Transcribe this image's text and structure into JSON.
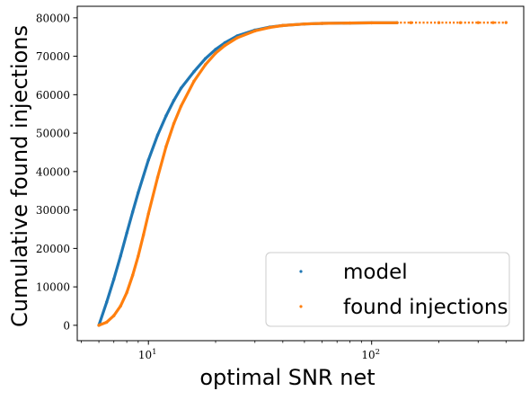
{
  "chart_data": {
    "type": "scatter",
    "title": "",
    "xlabel": "optimal SNR net",
    "ylabel": "Cumulative found injections",
    "x_scale": "log",
    "xlim": [
      4.8,
      480
    ],
    "ylim": [
      -4000,
      83000
    ],
    "grid": false,
    "legend_position": "lower-right",
    "xticks": [
      {
        "value": 10,
        "label": "10",
        "exp": "1"
      },
      {
        "value": 100,
        "label": "10",
        "exp": "2"
      }
    ],
    "yticks": [
      0,
      10000,
      20000,
      30000,
      40000,
      50000,
      60000,
      70000,
      80000
    ],
    "ytick_labels": [
      "0",
      "10000",
      "20000",
      "30000",
      "40000",
      "50000",
      "60000",
      "70000",
      "80000"
    ],
    "series": [
      {
        "name": "model",
        "color": "#1f77b4",
        "points": [
          [
            6.0,
            0
          ],
          [
            6.5,
            6000
          ],
          [
            7.0,
            12000
          ],
          [
            7.5,
            18000
          ],
          [
            8.0,
            24000
          ],
          [
            8.5,
            29500
          ],
          [
            9.0,
            34500
          ],
          [
            10.0,
            43000
          ],
          [
            11.0,
            49500
          ],
          [
            12.0,
            54500
          ],
          [
            13.0,
            58500
          ],
          [
            14.0,
            61700
          ],
          [
            16.0,
            66000
          ],
          [
            18.0,
            69400
          ],
          [
            20.0,
            71800
          ],
          [
            22.0,
            73500
          ],
          [
            25.0,
            75300
          ],
          [
            30.0,
            76800
          ],
          [
            35.0,
            77600
          ],
          [
            40.0,
            78000
          ],
          [
            50.0,
            78400
          ],
          [
            60.0,
            78550
          ],
          [
            80.0,
            78650
          ],
          [
            100.0,
            78700
          ],
          [
            130.0,
            78720
          ]
        ]
      },
      {
        "name": "found injections",
        "color": "#ff7f0e",
        "points": [
          [
            6.0,
            0
          ],
          [
            6.5,
            800
          ],
          [
            7.0,
            2500
          ],
          [
            7.5,
            5000
          ],
          [
            8.0,
            8500
          ],
          [
            8.5,
            13000
          ],
          [
            9.0,
            18000
          ],
          [
            9.5,
            23500
          ],
          [
            10.0,
            29000
          ],
          [
            11.0,
            38500
          ],
          [
            12.0,
            46500
          ],
          [
            13.0,
            52500
          ],
          [
            14.0,
            57000
          ],
          [
            16.0,
            63500
          ],
          [
            18.0,
            67800
          ],
          [
            20.0,
            70800
          ],
          [
            22.0,
            72800
          ],
          [
            25.0,
            74800
          ],
          [
            30.0,
            76600
          ],
          [
            35.0,
            77500
          ],
          [
            40.0,
            78000
          ],
          [
            50.0,
            78400
          ],
          [
            60.0,
            78550
          ],
          [
            80.0,
            78650
          ],
          [
            100.0,
            78700
          ],
          [
            130.0,
            78720
          ],
          [
            150.0,
            78730
          ],
          [
            200.0,
            78740
          ],
          [
            250.0,
            78745
          ],
          [
            300.0,
            78750
          ],
          [
            350.0,
            78755
          ],
          [
            400.0,
            78760
          ]
        ]
      }
    ]
  }
}
